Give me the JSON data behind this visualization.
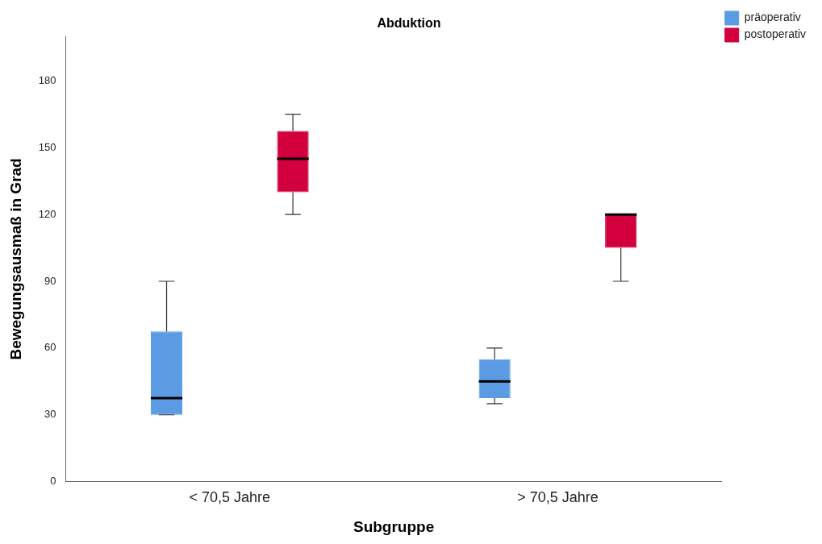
{
  "chart_data": {
    "type": "box",
    "title": "Abduktion",
    "xlabel": "Subgruppe",
    "ylabel": "Bewegungsausmaß in Grad",
    "categories": [
      "< 70,5 Jahre",
      "> 70,5 Jahre"
    ],
    "ylim": [
      0,
      200
    ],
    "yticks": [
      0,
      30,
      60,
      90,
      120,
      150,
      180
    ],
    "grid": false,
    "legend": "top right",
    "series": [
      {
        "name": "präoperativ",
        "color": "#5a9be3",
        "boxes": [
          {
            "low": 30,
            "q1": 30,
            "median": 37.5,
            "q3": 67.5,
            "high": 90
          },
          {
            "low": 35,
            "q1": 37.5,
            "median": 45,
            "q3": 55,
            "high": 60
          }
        ]
      },
      {
        "name": "postoperativ",
        "color": "#d2003c",
        "boxes": [
          {
            "low": 120,
            "q1": 130,
            "median": 145,
            "q3": 157.5,
            "high": 165
          },
          {
            "low": 90,
            "q1": 105,
            "median": 120,
            "q3": 120,
            "high": 120
          }
        ]
      }
    ]
  }
}
